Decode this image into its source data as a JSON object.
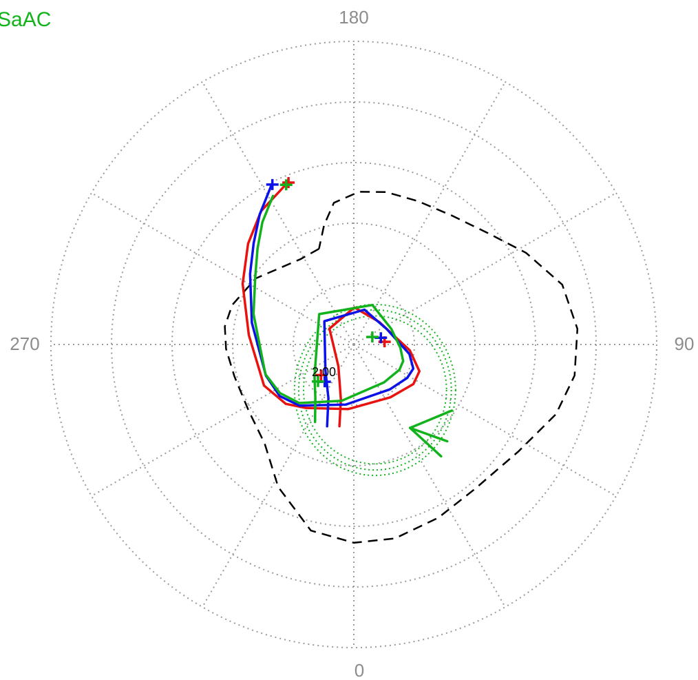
{
  "title": "SaAC",
  "time_label": "2:00",
  "angle_labels": [
    "180",
    "90",
    "0",
    "270"
  ],
  "colors": {
    "title": "#11b21c",
    "grid": "#999999",
    "red": "#e8120f",
    "blue": "#0a12e8",
    "green": "#11b21c",
    "boundary": "#000000",
    "oval": "#11b21c"
  },
  "chart_data": {
    "type": "polar",
    "angle_direction": "clockwise from bottom (0 at bottom, 90 at right)",
    "r_grid": [
      10,
      20,
      30,
      40,
      50
    ],
    "theta_grid_step_deg": 30,
    "series": [
      {
        "color": "red",
        "points": [
          [
            28.9,
            202.0
          ],
          [
            26.8,
            214.8
          ],
          [
            24.1,
            226.4
          ],
          [
            20.9,
            241.4
          ],
          [
            17.4,
            264.9
          ],
          [
            16.3,
            294.6
          ],
          [
            14.9,
            311.1
          ],
          [
            13.1,
            323.0
          ],
          [
            10.7,
            354.9
          ],
          [
            10.6,
            34.7
          ],
          [
            11.8,
            56.4
          ],
          [
            11.7,
            67.8
          ],
          [
            9.3,
            83.9
          ],
          [
            5.6,
            131.4
          ],
          [
            6.1,
            179.1
          ],
          [
            4.8,
            237.0
          ],
          [
            4.4,
            324.6
          ],
          [
            9.3,
            346.7
          ],
          [
            13.7,
            350.0
          ]
        ],
        "ticks": [
          [
            28.8,
            202.0
          ],
          [
            7.4,
            313.0
          ],
          [
            5.1,
            95.0
          ]
        ]
      },
      {
        "color": "blue",
        "points": [
          [
            29.7,
            207.1
          ],
          [
            26.5,
            215.9
          ],
          [
            23.5,
            224.7
          ],
          [
            20.7,
            235.8
          ],
          [
            17.2,
            258.0
          ],
          [
            15.4,
            289.5
          ],
          [
            14.9,
            304.8
          ],
          [
            13.5,
            318.4
          ],
          [
            10.0,
            352.5
          ],
          [
            9.5,
            38.7
          ],
          [
            10.4,
            58.0
          ],
          [
            10.6,
            67.9
          ],
          [
            9.3,
            80.3
          ],
          [
            6.0,
            115.0
          ],
          [
            6.0,
            163.0
          ],
          [
            6.2,
            231.7
          ],
          [
            6.3,
            311.8
          ],
          [
            9.8,
            334.7
          ],
          [
            14.2,
            341.9
          ]
        ],
        "ticks": [
          [
            29.6,
            207.0
          ],
          [
            7.8,
            322.0
          ],
          [
            4.6,
            104.0
          ]
        ]
      },
      {
        "color": "green",
        "points": [
          [
            27.9,
            208.6
          ],
          [
            25.2,
            216.8
          ],
          [
            22.4,
            225.2
          ],
          [
            19.8,
            235.2
          ],
          [
            17.3,
            253.1
          ],
          [
            15.4,
            288.6
          ],
          [
            14.6,
            303.3
          ],
          [
            13.2,
            317.0
          ],
          [
            9.5,
            347.9
          ],
          [
            8.0,
            38.6
          ],
          [
            8.6,
            61.1
          ],
          [
            8.6,
            71.4
          ],
          [
            7.7,
            85.9
          ],
          [
            6.7,
            112.3
          ],
          [
            7.2,
            154.8
          ],
          [
            7.6,
            228.8
          ],
          [
            8.3,
            308.6
          ],
          [
            10.8,
            324.0
          ],
          [
            14.3,
            333.4
          ]
        ],
        "ticks": [
          [
            28.6,
            203.0
          ],
          [
            8.5,
            316.0
          ],
          [
            3.3,
            112.0
          ]
        ]
      }
    ],
    "green_spikes": [
      [
        [
          16.6,
          34.0
        ],
        [
          23.4,
          38.0
        ]
      ],
      [
        [
          16.6,
          34.0
        ],
        [
          22.2,
          44.0
        ]
      ],
      [
        [
          16.6,
          34.0
        ],
        [
          19.5,
          56.0
        ]
      ]
    ],
    "boundary_dashed": {
      "color": "boundary",
      "points": [
        [
          16.8,
          200.0
        ],
        [
          16.6,
          212.0
        ],
        [
          19.5,
          236.0
        ],
        [
          21.1,
          252.0
        ],
        [
          21.5,
          262.0
        ],
        [
          21.1,
          272.0
        ],
        [
          20.4,
          285.0
        ],
        [
          20.5,
          302.0
        ],
        [
          22.0,
          318.0
        ],
        [
          26.6,
          332.0
        ],
        [
          31.5,
          347.0
        ],
        [
          32.7,
          0.0
        ],
        [
          32.7,
          12.0
        ],
        [
          31.8,
          26.0
        ],
        [
          31.1,
          40.0
        ],
        [
          32.4,
          57.0
        ],
        [
          35.3,
          71.0
        ],
        [
          36.8,
          82.0
        ],
        [
          37.0,
          94.0
        ],
        [
          35.8,
          106.0
        ],
        [
          32.2,
          118.0
        ],
        [
          28.7,
          130.0
        ],
        [
          26.7,
          143.0
        ],
        [
          25.9,
          156.0
        ],
        [
          25.7,
          168.0
        ],
        [
          25.2,
          178.0
        ],
        [
          23.6,
          188.0
        ],
        [
          20.3,
          194.0
        ],
        [
          16.8,
          200.0
        ]
      ]
    },
    "ovals_dotted": [
      {
        "color": "oval",
        "cx": 3.5,
        "cy": 7.5,
        "rx": 11.8,
        "ry": 12.2
      },
      {
        "color": "oval",
        "cx": 3.5,
        "cy": 7.5,
        "rx": 12.6,
        "ry": 13.2
      },
      {
        "color": "oval",
        "cx": 3.5,
        "cy": 7.5,
        "rx": 13.3,
        "ry": 14.1
      }
    ]
  }
}
